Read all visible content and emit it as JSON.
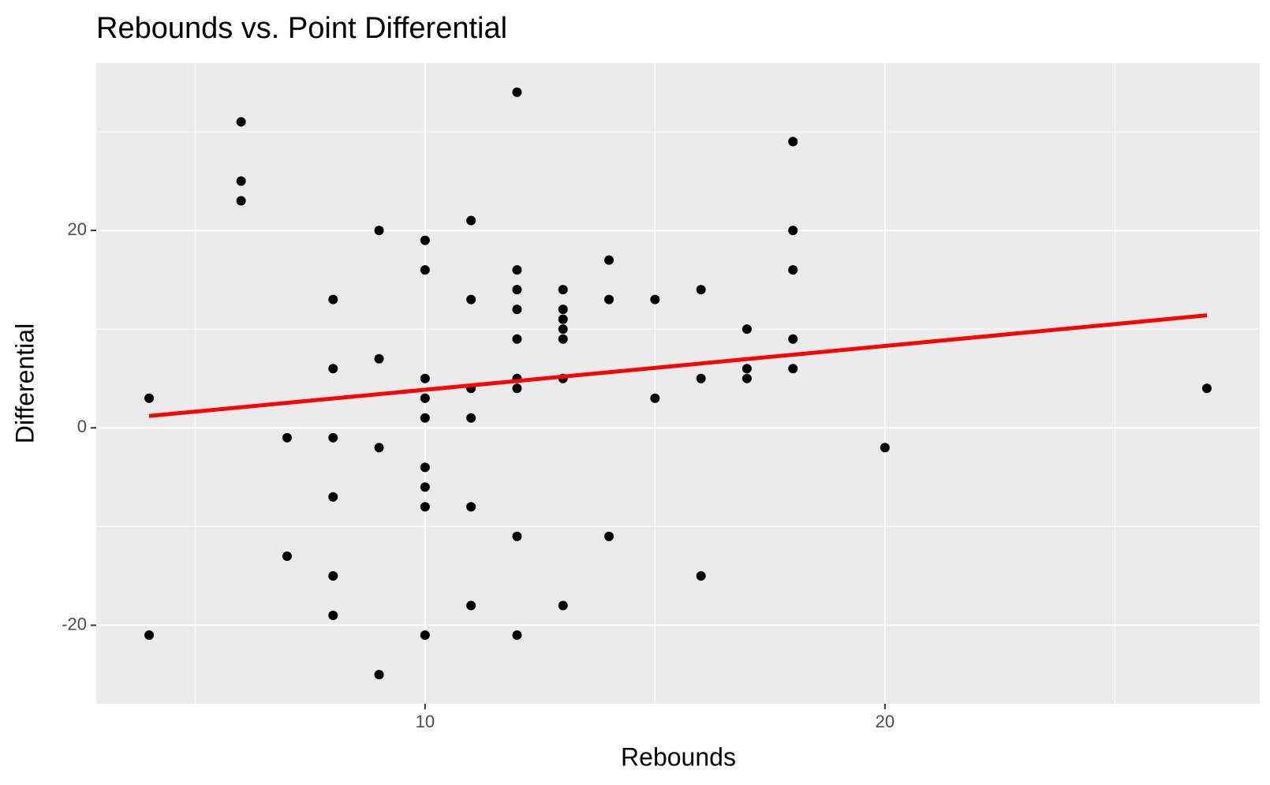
{
  "chart_data": {
    "type": "scatter",
    "title": "Rebounds vs. Point Differential",
    "x_label": "Rebounds",
    "y_label": "Differential",
    "x": [
      4,
      4,
      6,
      6,
      6,
      7,
      7,
      8,
      8,
      8,
      8,
      8,
      8,
      9,
      9,
      9,
      9,
      10,
      10,
      10,
      10,
      10,
      10,
      10,
      10,
      10,
      11,
      11,
      11,
      11,
      11,
      11,
      12,
      12,
      12,
      12,
      12,
      12,
      12,
      12,
      12,
      13,
      13,
      13,
      13,
      13,
      13,
      13,
      14,
      14,
      14,
      15,
      15,
      16,
      16,
      16,
      17,
      17,
      17,
      18,
      18,
      18,
      18,
      18,
      20,
      27
    ],
    "y": [
      3,
      -21,
      31,
      25,
      23,
      -1,
      -13,
      13,
      6,
      -1,
      -7,
      -15,
      -19,
      20,
      7,
      -2,
      -25,
      19,
      16,
      5,
      3,
      1,
      -4,
      -6,
      -8,
      -21,
      21,
      13,
      4,
      1,
      -8,
      -18,
      34,
      16,
      14,
      12,
      9,
      5,
      4,
      -11,
      -21,
      14,
      12,
      11,
      10,
      9,
      5,
      -18,
      17,
      13,
      -11,
      13,
      3,
      14,
      5,
      -15,
      10,
      6,
      5,
      29,
      20,
      16,
      9,
      6,
      -2,
      4
    ],
    "color": "#000000",
    "fit": {
      "x": [
        4,
        27
      ],
      "values": [
        1.2,
        11.4
      ],
      "color": "#ff0000"
    },
    "xlim": [
      2.85,
      28.15
    ],
    "ylim": [
      -27.95,
      36.95
    ],
    "xticks": [
      10,
      20
    ],
    "yticks": [
      -20,
      0,
      20
    ],
    "x_minor_grid": [
      5,
      15,
      25
    ],
    "y_minor_grid": [
      -10,
      10,
      30
    ],
    "grid": true
  }
}
